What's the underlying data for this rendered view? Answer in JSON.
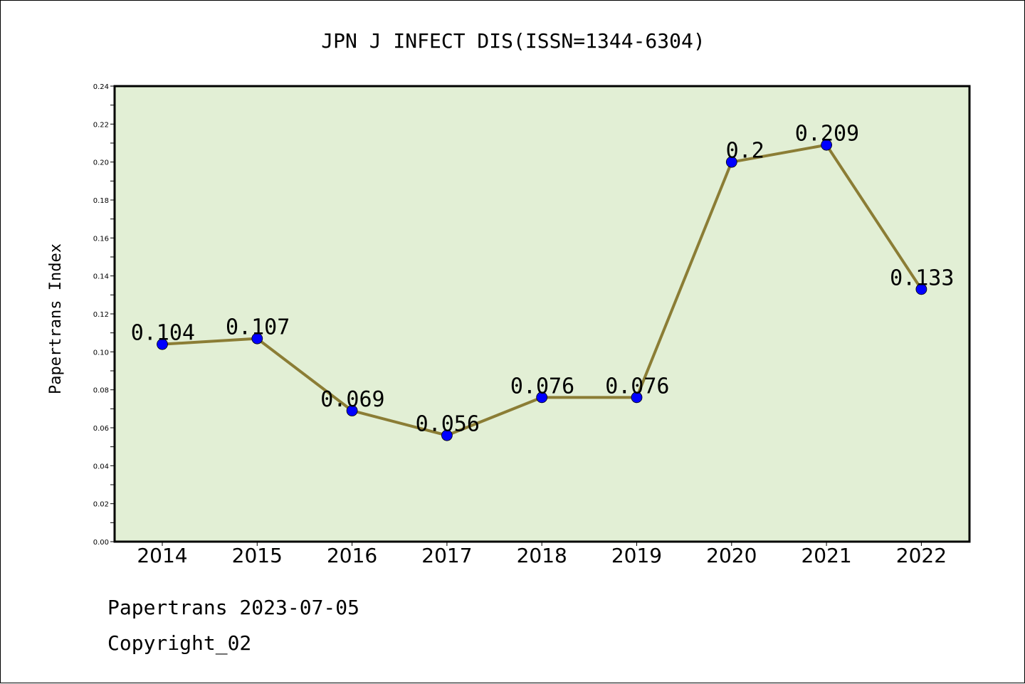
{
  "chart_data": {
    "type": "line",
    "title": "JPN J INFECT DIS(ISSN=1344-6304)",
    "ylabel": "Papertrans Index",
    "xlabel": "",
    "categories": [
      "2014",
      "2015",
      "2016",
      "2017",
      "2018",
      "2019",
      "2020",
      "2021",
      "2022"
    ],
    "series": [
      {
        "values": [
          0.104,
          0.107,
          0.069,
          0.056,
          0.076,
          0.076,
          0.2,
          0.209,
          0.133
        ]
      }
    ],
    "data_labels": [
      "0.104",
      "0.107",
      "0.069",
      "0.056",
      "0.076",
      "0.076",
      "0.2",
      "0.209",
      "0.133"
    ],
    "ylim": [
      0,
      0.24
    ],
    "yticks": [
      "0.00",
      "0.02",
      "0.04",
      "0.06",
      "0.08",
      "0.10",
      "0.12",
      "0.14",
      "0.16",
      "0.18",
      "0.20",
      "0.22",
      "0.24"
    ],
    "grid": false,
    "colors": {
      "plot_background": "#e2efd5",
      "line": "#8b7d35",
      "marker": "#0000ff"
    }
  },
  "footer": {
    "date_text": "Papertrans 2023-07-05",
    "copyright_text": "Copyright_02"
  }
}
